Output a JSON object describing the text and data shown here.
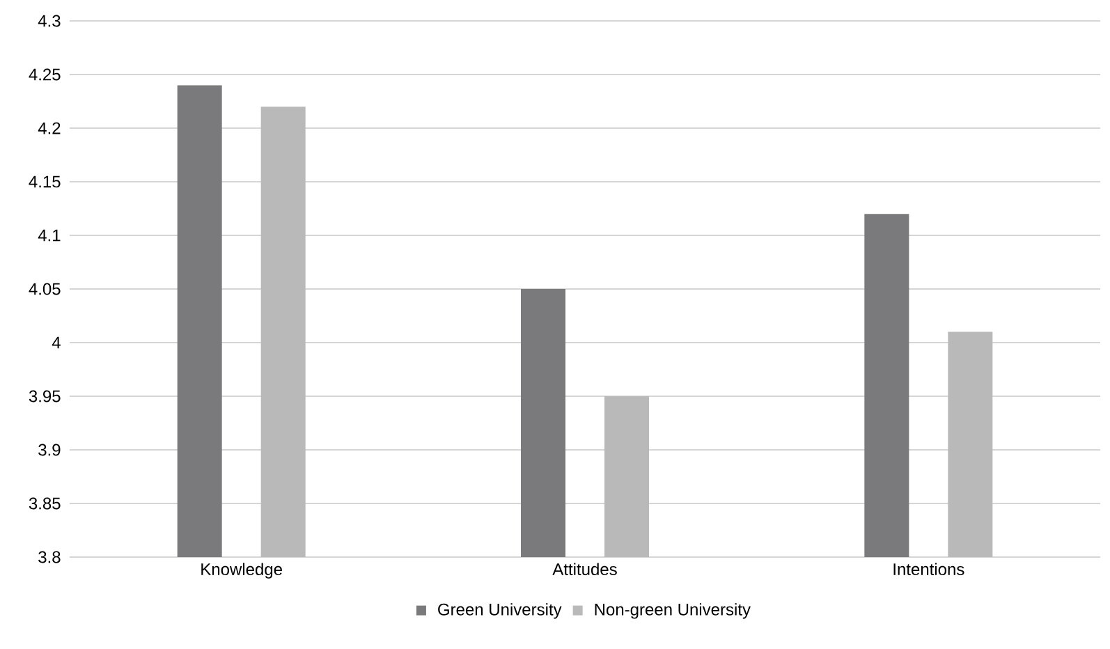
{
  "chart_data": {
    "type": "bar",
    "categories": [
      "Knowledge",
      "Attitudes",
      "Intentions"
    ],
    "series": [
      {
        "name": "Green University",
        "color": "#7a7a7c",
        "values": [
          4.24,
          4.05,
          4.12
        ]
      },
      {
        "name": "Non-green University",
        "color": "#b9b9b9",
        "values": [
          4.22,
          3.95,
          4.01
        ]
      }
    ],
    "ylim": [
      3.8,
      4.3
    ],
    "yticks": [
      3.8,
      3.85,
      3.9,
      3.95,
      4,
      4.05,
      4.1,
      4.15,
      4.2,
      4.25,
      4.3
    ],
    "grid": "y",
    "legend": "bottom"
  }
}
